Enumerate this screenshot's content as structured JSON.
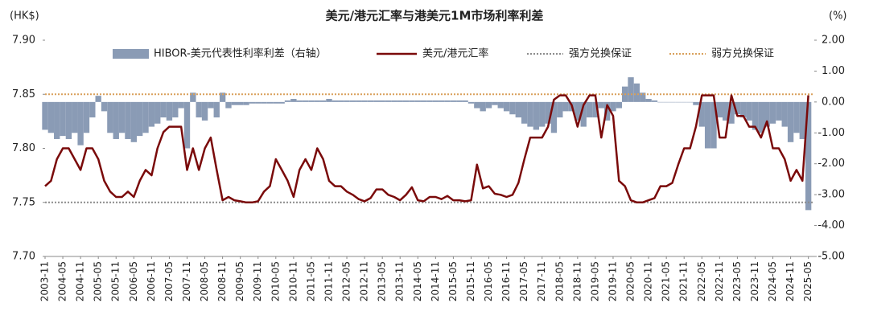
{
  "chart_data": {
    "type": "combo",
    "title": "美元/港元汇率与港美元1M市场利率利差",
    "ylabel": "(HK$)",
    "y2label": "(%)",
    "x": [
      "2003-11",
      "2004-01",
      "2004-03",
      "2004-05",
      "2004-07",
      "2004-09",
      "2004-11",
      "2005-01",
      "2005-03",
      "2005-05",
      "2005-07",
      "2005-09",
      "2005-11",
      "2006-01",
      "2006-03",
      "2006-05",
      "2006-07",
      "2006-09",
      "2006-11",
      "2007-01",
      "2007-03",
      "2007-05",
      "2007-07",
      "2007-09",
      "2007-11",
      "2008-01",
      "2008-03",
      "2008-05",
      "2008-07",
      "2008-09",
      "2008-11",
      "2009-01",
      "2009-03",
      "2009-05",
      "2009-07",
      "2009-09",
      "2009-11",
      "2010-01",
      "2010-03",
      "2010-05",
      "2010-07",
      "2010-09",
      "2010-11",
      "2011-01",
      "2011-03",
      "2011-05",
      "2011-07",
      "2011-09",
      "2011-11",
      "2012-01",
      "2012-03",
      "2012-05",
      "2012-07",
      "2012-09",
      "2012-11",
      "2013-01",
      "2013-03",
      "2013-05",
      "2013-07",
      "2013-09",
      "2013-11",
      "2014-01",
      "2014-03",
      "2014-05",
      "2014-07",
      "2014-09",
      "2014-11",
      "2015-01",
      "2015-03",
      "2015-05",
      "2015-07",
      "2015-09",
      "2015-11",
      "2016-01",
      "2016-03",
      "2016-05",
      "2016-07",
      "2016-09",
      "2016-11",
      "2017-01",
      "2017-03",
      "2017-05",
      "2017-07",
      "2017-09",
      "2017-11",
      "2018-01",
      "2018-03",
      "2018-05",
      "2018-07",
      "2018-09",
      "2018-11",
      "2019-01",
      "2019-03",
      "2019-05",
      "2019-07",
      "2019-09",
      "2019-11",
      "2020-01",
      "2020-03",
      "2020-05",
      "2020-07",
      "2020-09",
      "2020-11",
      "2021-01",
      "2021-03",
      "2021-05",
      "2021-07",
      "2021-09",
      "2021-11",
      "2022-01",
      "2022-03",
      "2022-05",
      "2022-07",
      "2022-09",
      "2022-11",
      "2023-01",
      "2023-03",
      "2023-05",
      "2023-07",
      "2023-09",
      "2023-11",
      "2024-01",
      "2024-03",
      "2024-05",
      "2024-07",
      "2024-09",
      "2024-11",
      "2025-01",
      "2025-03",
      "2025-05"
    ],
    "series": [
      {
        "name": "HIBOR-美元代表性利率利差（右轴）",
        "type": "bar",
        "axis": "y2",
        "color": "#8a9bb5",
        "values": [
          -0.9,
          -1.0,
          -1.2,
          -1.1,
          -1.2,
          -1.0,
          -1.4,
          -1.0,
          -0.5,
          0.2,
          -0.3,
          -1.0,
          -1.2,
          -1.0,
          -1.2,
          -1.3,
          -1.1,
          -1.0,
          -0.8,
          -0.7,
          -0.5,
          -0.6,
          -0.5,
          -0.2,
          -1.5,
          0.3,
          -0.5,
          -0.6,
          -0.2,
          -0.5,
          0.3,
          -0.2,
          -0.1,
          -0.1,
          -0.1,
          -0.05,
          -0.05,
          -0.05,
          -0.05,
          -0.05,
          -0.05,
          0.05,
          0.1,
          0.05,
          0.05,
          0.05,
          0.05,
          0.05,
          0.1,
          0.05,
          0.05,
          0.05,
          0.05,
          0.05,
          0.05,
          0.05,
          0.05,
          0.05,
          0.05,
          0.05,
          0.05,
          0.05,
          0.05,
          0.05,
          0.05,
          0.05,
          0.05,
          0.05,
          0.05,
          0.05,
          0.05,
          0.05,
          -0.05,
          -0.2,
          -0.3,
          -0.2,
          -0.1,
          -0.2,
          -0.3,
          -0.4,
          -0.5,
          -0.7,
          -0.8,
          -0.9,
          -0.8,
          -0.7,
          -1.0,
          -0.5,
          -0.3,
          -0.3,
          -0.6,
          -0.8,
          -0.5,
          -0.5,
          -0.2,
          -0.6,
          -0.3,
          -0.2,
          0.5,
          0.8,
          0.6,
          0.3,
          0.1,
          0.05,
          0.0,
          0.0,
          0.0,
          0.0,
          0.0,
          0.0,
          -0.1,
          -0.8,
          -1.5,
          -1.5,
          -0.5,
          -0.6,
          -0.7,
          -0.4,
          -0.5,
          -0.6,
          -0.9,
          -1.0,
          -0.8,
          -0.7,
          -0.6,
          -0.8,
          -1.3,
          -1.0,
          -1.2,
          -3.5
        ]
      },
      {
        "name": "美元/港元汇率",
        "type": "line",
        "color": "#7a0a0a",
        "values": [
          7.765,
          7.77,
          7.79,
          7.8,
          7.8,
          7.79,
          7.78,
          7.8,
          7.8,
          7.79,
          7.77,
          7.76,
          7.755,
          7.755,
          7.76,
          7.755,
          7.77,
          7.78,
          7.775,
          7.8,
          7.815,
          7.82,
          7.82,
          7.82,
          7.78,
          7.8,
          7.78,
          7.8,
          7.81,
          7.78,
          7.752,
          7.755,
          7.752,
          7.751,
          7.75,
          7.75,
          7.751,
          7.76,
          7.765,
          7.79,
          7.78,
          7.77,
          7.755,
          7.78,
          7.79,
          7.78,
          7.8,
          7.79,
          7.77,
          7.765,
          7.765,
          7.76,
          7.757,
          7.753,
          7.751,
          7.754,
          7.762,
          7.762,
          7.757,
          7.755,
          7.752,
          7.757,
          7.764,
          7.752,
          7.751,
          7.755,
          7.755,
          7.753,
          7.756,
          7.752,
          7.752,
          7.751,
          7.752,
          7.785,
          7.763,
          7.765,
          7.758,
          7.757,
          7.755,
          7.757,
          7.768,
          7.79,
          7.81,
          7.81,
          7.81,
          7.82,
          7.845,
          7.849,
          7.849,
          7.84,
          7.82,
          7.84,
          7.849,
          7.849,
          7.81,
          7.84,
          7.83,
          7.77,
          7.765,
          7.752,
          7.75,
          7.75,
          7.752,
          7.754,
          7.765,
          7.765,
          7.768,
          7.785,
          7.8,
          7.8,
          7.82,
          7.849,
          7.849,
          7.849,
          7.81,
          7.81,
          7.849,
          7.83,
          7.83,
          7.82,
          7.82,
          7.81,
          7.825,
          7.8,
          7.8,
          7.79,
          7.77,
          7.78,
          7.77,
          7.849
        ]
      }
    ],
    "reference_lines": [
      {
        "name": "强方兑换保证",
        "value": 7.75,
        "color": "#8c8c8c"
      },
      {
        "name": "弱方兑换保证",
        "value": 7.85,
        "color": "#d9a05b"
      }
    ],
    "xlim": [
      "2003-11",
      "2025-07"
    ],
    "xticks": [
      "2003-11",
      "2004-05",
      "2004-11",
      "2005-05",
      "2005-11",
      "2006-05",
      "2006-11",
      "2007-05",
      "2007-11",
      "2008-05",
      "2008-11",
      "2009-05",
      "2009-11",
      "2010-05",
      "2010-11",
      "2011-05",
      "2011-11",
      "2012-05",
      "2012-11",
      "2013-05",
      "2013-11",
      "2014-05",
      "2014-11",
      "2015-05",
      "2015-11",
      "2016-05",
      "2016-11",
      "2017-05",
      "2017-11",
      "2018-05",
      "2018-11",
      "2019-05",
      "2019-11",
      "2020-05",
      "2020-11",
      "2021-05",
      "2021-11",
      "2022-05",
      "2022-11",
      "2023-05",
      "2023-11",
      "2024-05",
      "2024-11",
      "2025-05"
    ],
    "ylim": [
      7.7,
      7.9
    ],
    "yticks": [
      {
        "value": 7.7,
        "label": "7.70"
      },
      7.75,
      {
        "value": 7.8,
        "label": "7.80"
      },
      7.85,
      {
        "value": 7.9,
        "label": "7.90"
      }
    ],
    "y2lim": [
      -5,
      2
    ],
    "y2ticks": [
      {
        "value": -5,
        "label": "-5.00"
      },
      {
        "value": -4,
        "label": "-4.00"
      },
      {
        "value": -3,
        "label": "-3.00"
      },
      {
        "value": -2,
        "label": "-2.00"
      },
      {
        "value": -1,
        "label": "-1.00"
      },
      {
        "value": 0,
        "label": "0.00"
      },
      {
        "value": 1,
        "label": "1.00"
      },
      {
        "value": 2,
        "label": "2.00"
      }
    ]
  }
}
